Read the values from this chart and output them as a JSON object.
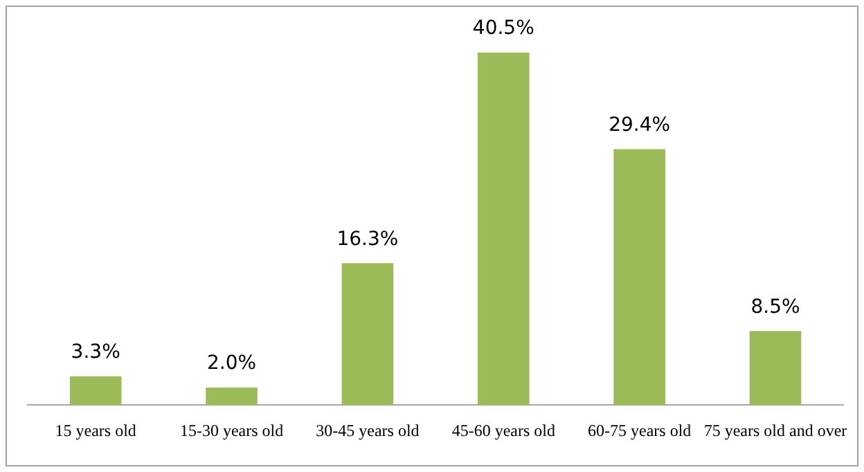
{
  "chart_data": {
    "type": "bar",
    "categories": [
      "15 years old",
      "15-30 years old",
      "30-45 years old",
      "45-60 years old",
      "60-75 years old",
      "75 years old and over"
    ],
    "values": [
      3.3,
      2.0,
      16.3,
      40.5,
      29.4,
      8.5
    ],
    "value_labels": [
      "3.3%",
      "2.0%",
      "16.3%",
      "40.5%",
      "29.4%",
      "8.5%"
    ],
    "color": "#9bbb59",
    "grid": false,
    "legend": false
  }
}
